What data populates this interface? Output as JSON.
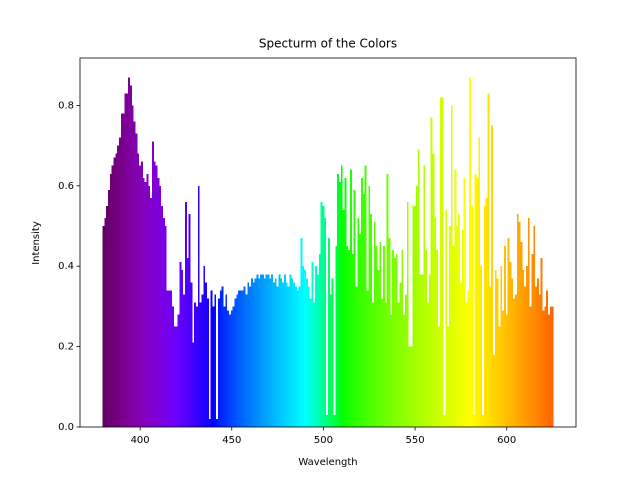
{
  "chart_data": {
    "type": "bar",
    "title": "Specturm of the Colors",
    "xlabel": "Wavelength",
    "ylabel": "Intensity",
    "x": [
      380,
      381,
      382,
      383,
      384,
      385,
      386,
      387,
      388,
      389,
      390,
      391,
      392,
      393,
      394,
      395,
      396,
      397,
      398,
      399,
      400,
      401,
      402,
      403,
      404,
      405,
      406,
      407,
      408,
      409,
      410,
      411,
      412,
      413,
      414,
      415,
      416,
      417,
      418,
      419,
      420,
      421,
      422,
      423,
      424,
      425,
      426,
      427,
      428,
      429,
      430,
      431,
      432,
      433,
      434,
      435,
      436,
      437,
      438,
      439,
      440,
      441,
      442,
      443,
      444,
      445,
      446,
      447,
      448,
      449,
      450,
      451,
      452,
      453,
      454,
      455,
      456,
      457,
      458,
      459,
      460,
      461,
      462,
      463,
      464,
      465,
      466,
      467,
      468,
      469,
      470,
      471,
      472,
      473,
      474,
      475,
      476,
      477,
      478,
      479,
      480,
      481,
      482,
      483,
      484,
      485,
      486,
      487,
      488,
      489,
      490,
      491,
      492,
      493,
      494,
      495,
      496,
      497,
      498,
      499,
      500,
      501,
      502,
      503,
      504,
      505,
      506,
      507,
      508,
      509,
      510,
      511,
      512,
      513,
      514,
      515,
      516,
      517,
      518,
      519,
      520,
      521,
      522,
      523,
      524,
      525,
      526,
      527,
      528,
      529,
      530,
      531,
      532,
      533,
      534,
      535,
      536,
      537,
      538,
      539,
      540,
      541,
      542,
      543,
      544,
      545,
      546,
      547,
      548,
      549,
      550,
      551,
      552,
      553,
      554,
      555,
      556,
      557,
      558,
      559,
      560,
      561,
      562,
      563,
      564,
      565,
      566,
      567,
      568,
      569,
      570,
      571,
      572,
      573,
      574,
      575,
      576,
      577,
      578,
      579,
      580,
      581,
      582,
      583,
      584,
      585,
      586,
      587,
      588,
      589,
      590,
      591,
      592,
      593,
      594,
      595,
      596,
      597,
      598,
      599,
      600,
      601,
      602,
      603,
      604,
      605,
      606,
      607,
      608,
      609,
      610,
      611,
      612,
      613,
      614,
      615,
      616,
      617,
      618,
      619,
      620,
      621,
      622,
      623,
      624,
      625
    ],
    "values": [
      0.5,
      0.52,
      0.55,
      0.59,
      0.63,
      0.65,
      0.67,
      0.68,
      0.7,
      0.72,
      0.78,
      0.78,
      0.83,
      0.83,
      0.87,
      0.85,
      0.8,
      0.76,
      0.73,
      0.68,
      0.65,
      0.66,
      0.62,
      0.61,
      0.63,
      0.6,
      0.57,
      0.71,
      0.66,
      0.65,
      0.62,
      0.6,
      0.55,
      0.52,
      0.5,
      0.34,
      0.34,
      0.34,
      0.3,
      0.25,
      0.25,
      0.28,
      0.41,
      0.39,
      0.33,
      0.56,
      0.42,
      0.53,
      0.36,
      0.21,
      0.31,
      0.3,
      0.6,
      0.31,
      0.33,
      0.4,
      0.36,
      0.32,
      0.02,
      0.34,
      0.3,
      0.33,
      0.02,
      0.32,
      0.34,
      0.35,
      0.3,
      0.33,
      0.29,
      0.28,
      0.29,
      0.3,
      0.32,
      0.33,
      0.34,
      0.34,
      0.34,
      0.35,
      0.33,
      0.36,
      0.35,
      0.37,
      0.36,
      0.37,
      0.38,
      0.37,
      0.38,
      0.38,
      0.37,
      0.38,
      0.38,
      0.37,
      0.38,
      0.36,
      0.37,
      0.35,
      0.38,
      0.37,
      0.36,
      0.38,
      0.36,
      0.35,
      0.38,
      0.37,
      0.36,
      0.35,
      0.34,
      0.35,
      0.47,
      0.4,
      0.39,
      0.37,
      0.35,
      0.32,
      0.41,
      0.31,
      0.4,
      0.38,
      0.43,
      0.56,
      0.55,
      0.52,
      0.03,
      0.47,
      0.33,
      0.37,
      0.03,
      0.45,
      0.63,
      0.61,
      0.65,
      0.54,
      0.62,
      0.45,
      0.44,
      0.64,
      0.43,
      0.59,
      0.35,
      0.52,
      0.48,
      0.62,
      0.58,
      0.65,
      0.34,
      0.6,
      0.53,
      0.31,
      0.51,
      0.45,
      0.39,
      0.46,
      0.32,
      0.45,
      0.31,
      0.63,
      0.47,
      0.28,
      0.44,
      0.42,
      0.43,
      0.31,
      0.36,
      0.44,
      0.28,
      0.33,
      0.56,
      0.2,
      0.2,
      0.55,
      0.55,
      0.6,
      0.69,
      0.38,
      0.38,
      0.65,
      0.44,
      0.31,
      0.38,
      0.77,
      0.68,
      0.52,
      0.44,
      0.25,
      0.82,
      0.82,
      0.03,
      0.54,
      0.25,
      0.5,
      0.8,
      0.45,
      0.64,
      0.5,
      0.53,
      0.36,
      0.49,
      0.62,
      0.31,
      0.34,
      0.87,
      0.55,
      0.03,
      0.63,
      0.62,
      0.72,
      0.4,
      0.03,
      0.55,
      0.57,
      0.83,
      0.35,
      0.75,
      0.18,
      0.39,
      0.37,
      0.25,
      0.4,
      0.29,
      0.45,
      0.28,
      0.47,
      0.41,
      0.37,
      0.32,
      0.33,
      0.53,
      0.51,
      0.46,
      0.39,
      0.35,
      0.4,
      0.52,
      0.3,
      0.43,
      0.5,
      0.35,
      0.37,
      0.33,
      0.42,
      0.29,
      0.3,
      0.34,
      0.28,
      0.3,
      0.3
    ],
    "xlim": [
      367.2,
      637.8
    ],
    "xticks": [
      400,
      450,
      500,
      550,
      600
    ],
    "ylim": [
      0,
      0.918
    ],
    "yticks": [
      {
        "value": 0,
        "label": "0.0"
      },
      0.2,
      0.4,
      0.6,
      0.8
    ],
    "grid": false
  }
}
